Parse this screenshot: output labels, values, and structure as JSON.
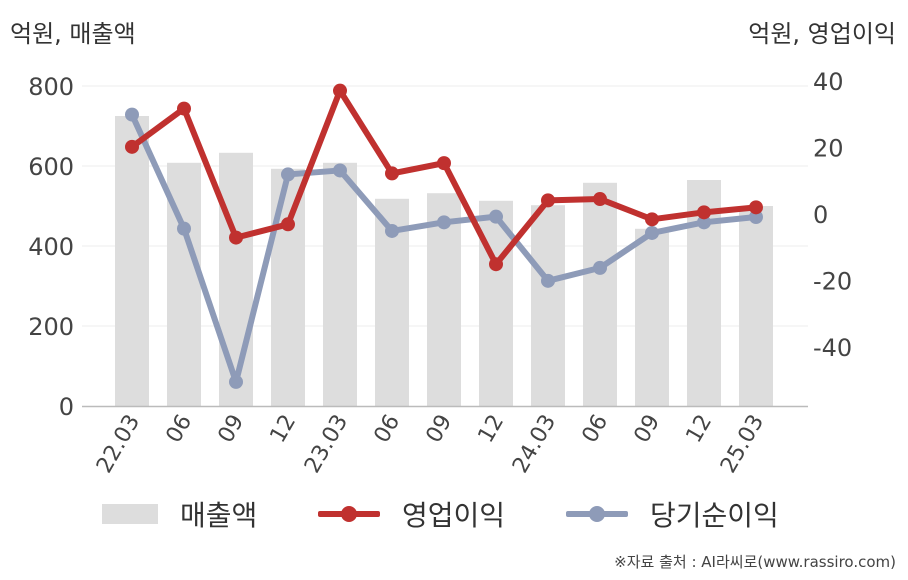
{
  "units": {
    "left": "억원, 매출액",
    "right": "억원, 영업이익"
  },
  "colors": {
    "revenue": "#dddddd",
    "operating_profit": "#c0312f",
    "net_income": "#8e9bb8",
    "axis": "#bbbbbb",
    "grid": "#eeeeee"
  },
  "chart_data": {
    "type": "bar",
    "categories": [
      "22.03",
      "06",
      "09",
      "12",
      "23.03",
      "06",
      "09",
      "12",
      "24.03",
      "06",
      "09",
      "12",
      "25.03"
    ],
    "series": [
      {
        "name": "매출액",
        "type": "bar",
        "axis": "left",
        "values": [
          725,
          608,
          633,
          593,
          608,
          518,
          532,
          513,
          502,
          558,
          443,
          565,
          500
        ]
      },
      {
        "name": "영업이익",
        "type": "line",
        "axis": "right",
        "values": [
          20.2,
          31.7,
          -7.1,
          -3.1,
          37.1,
          12.2,
          15.3,
          -15.1,
          4.1,
          4.5,
          -1.6,
          0.5,
          2.0
        ]
      },
      {
        "name": "당기순이익",
        "type": "line",
        "axis": "right",
        "values": [
          29.9,
          -4.4,
          -50.5,
          11.9,
          13.1,
          -5.1,
          -2.5,
          -0.8,
          -20.1,
          -16.2,
          -5.7,
          -2.5,
          -0.9
        ]
      }
    ],
    "left_axis": {
      "ticks": [
        0,
        200,
        400,
        600,
        800
      ],
      "range": [
        0,
        800
      ]
    },
    "right_axis": {
      "ticks": [
        -40,
        -20,
        0,
        20,
        40
      ],
      "range": [
        -58,
        40
      ]
    },
    "legend_position": "bottom"
  },
  "legend": {
    "revenue": "매출액",
    "operating_profit": "영업이익",
    "net_income": "당기순이익"
  },
  "source": "※자료 출처 : AI라씨로(www.rassiro.com)"
}
